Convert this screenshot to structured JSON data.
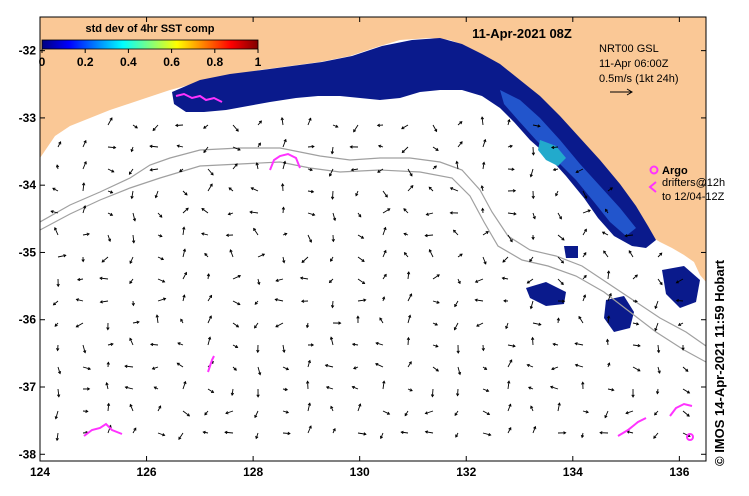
{
  "map": {
    "timestamp_title": "11-Apr-2021 08Z",
    "x_ticks": [
      "124",
      "126",
      "128",
      "130",
      "132",
      "134",
      "136"
    ],
    "y_ticks": [
      "-32",
      "-33",
      "-34",
      "-35",
      "-36",
      "-37",
      "-38"
    ],
    "x_range": [
      124,
      136.5
    ],
    "y_range": [
      -31.5,
      -38.1
    ],
    "colors": {
      "land": "#fac896",
      "sea": "#ffffff",
      "argo": "#ff33ff",
      "sst_dark": "#0a1a8c",
      "sst_mid": "#2255cc",
      "sst_light": "#22aacc",
      "isobath": "#a0a0a0",
      "arrow": "#000000"
    }
  },
  "colorbar": {
    "title": "std dev of 4hr SST comp",
    "tick_labels": [
      "0",
      "0.2",
      "0.4",
      "0.6",
      "0.8",
      "1"
    ],
    "range": [
      0,
      1
    ],
    "colormap": "jet"
  },
  "current_legend": {
    "line1": "NRT00 GSL",
    "line2": "11-Apr 06:00Z",
    "line3": "0.5m/s (1kt 24h)",
    "arrow_icon": "right-arrow-icon"
  },
  "argo_legend": {
    "argo_label": "Argo",
    "drifters_line1": "drifters@12h",
    "drifters_line2": "to 12/04-12Z",
    "argo_icon": "circle-marker-icon",
    "drifter_icon": "triangle-marker-icon"
  },
  "credit": "© IMOS 14-Apr-2021 11:59 Hobart"
}
